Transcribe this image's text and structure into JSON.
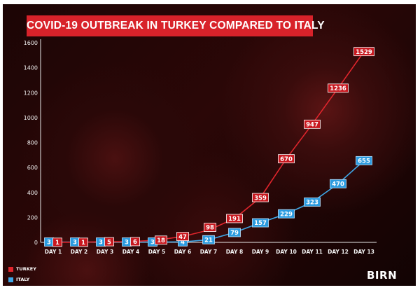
{
  "title": "COVID-19 OUTBREAK IN TURKEY COMPARED TO ITALY",
  "logo": "BIRN",
  "chart_data": {
    "type": "line",
    "title": "COVID-19 OUTBREAK IN TURKEY COMPARED TO ITALY",
    "categories": [
      "DAY 1",
      "DAY 2",
      "DAY 3",
      "DAY 4",
      "DAY 5",
      "DAY 6",
      "DAY 7",
      "DAY 8",
      "DAY 9",
      "DAY 10",
      "DAY 11",
      "DAY 12",
      "DAY 13"
    ],
    "series": [
      {
        "name": "TURKEY",
        "color": "#e0252c",
        "values": [
          1,
          1,
          5,
          6,
          18,
          47,
          98,
          191,
          359,
          670,
          947,
          1236,
          1529
        ]
      },
      {
        "name": "ITALY",
        "color": "#3da6e6",
        "values": [
          3,
          3,
          3,
          3,
          3,
          4,
          21,
          79,
          157,
          229,
          323,
          470,
          655
        ]
      }
    ],
    "y_ticks": [
      0,
      200,
      400,
      600,
      800,
      1000,
      1200,
      1400,
      1600
    ],
    "ylim": [
      0,
      1600
    ],
    "grid": false,
    "legend_position": "bottom-left"
  }
}
